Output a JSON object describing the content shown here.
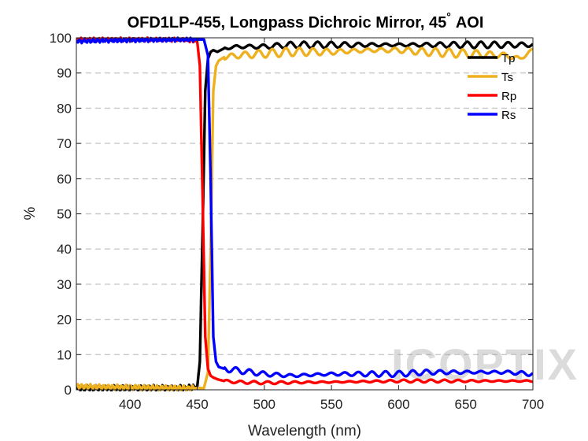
{
  "chart_data": {
    "type": "line",
    "title": "OFD1LP-455, Longpass Dichroic Mirror, 45",
    "title_degree": "°",
    "title_suffix": "AOI",
    "xlabel": "Wavelength (nm)",
    "ylabel": "%",
    "xlim": [
      360,
      700
    ],
    "ylim": [
      0,
      100
    ],
    "xticks": [
      400,
      450,
      500,
      550,
      600,
      650,
      700
    ],
    "yticks": [
      0,
      10,
      20,
      30,
      40,
      50,
      60,
      70,
      80,
      90,
      100
    ],
    "grid": "horizontal dashed",
    "legend_position": "top-right",
    "watermark": "ICOPTIX",
    "series": [
      {
        "name": "Tp",
        "color": "#000000",
        "x": [
          360,
          380,
          400,
          420,
          440,
          450,
          452,
          454,
          456,
          458,
          460,
          462,
          465,
          470,
          480,
          500,
          520,
          550,
          580,
          600,
          620,
          650,
          680,
          700
        ],
        "y": [
          0.5,
          0.5,
          0.5,
          0.5,
          0.5,
          0.8,
          8,
          45,
          85,
          94,
          96,
          96.5,
          96,
          97,
          97.5,
          97.5,
          98,
          98,
          98,
          98,
          98,
          98,
          98,
          98
        ]
      },
      {
        "name": "Ts",
        "color": "#edb120",
        "x": [
          360,
          380,
          400,
          420,
          440,
          455,
          458,
          460,
          462,
          464,
          466,
          470,
          480,
          500,
          520,
          550,
          580,
          600,
          620,
          650,
          680,
          690,
          700
        ],
        "y": [
          1,
          0.8,
          0.7,
          0.6,
          0.5,
          0.5,
          5,
          40,
          85,
          92,
          93.5,
          94.5,
          95,
          95.5,
          96,
          96,
          96.5,
          96.5,
          96,
          95.5,
          95,
          94,
          96.5
        ]
      },
      {
        "name": "Rp",
        "color": "#ff0000",
        "x": [
          360,
          380,
          400,
          420,
          440,
          450,
          452,
          454,
          456,
          458,
          460,
          462,
          465,
          470,
          480,
          500,
          550,
          600,
          650,
          700
        ],
        "y": [
          99.5,
          99.5,
          99.5,
          99.5,
          99.5,
          99,
          92,
          55,
          15,
          6,
          4,
          3.5,
          3,
          2.5,
          2.2,
          2,
          2.2,
          2.5,
          2.5,
          2.5
        ]
      },
      {
        "name": "Rs",
        "color": "#0000ff",
        "x": [
          360,
          380,
          400,
          420,
          440,
          455,
          458,
          460,
          462,
          464,
          466,
          470,
          480,
          500,
          520,
          550,
          580,
          600,
          620,
          650,
          680,
          700
        ],
        "y": [
          99,
          99.2,
          99.3,
          99.4,
          99.5,
          99.5,
          95,
          60,
          15,
          8,
          6.5,
          6,
          5.5,
          4.5,
          4,
          4.5,
          4.5,
          4.5,
          5,
          5,
          5,
          4.5
        ]
      }
    ]
  }
}
